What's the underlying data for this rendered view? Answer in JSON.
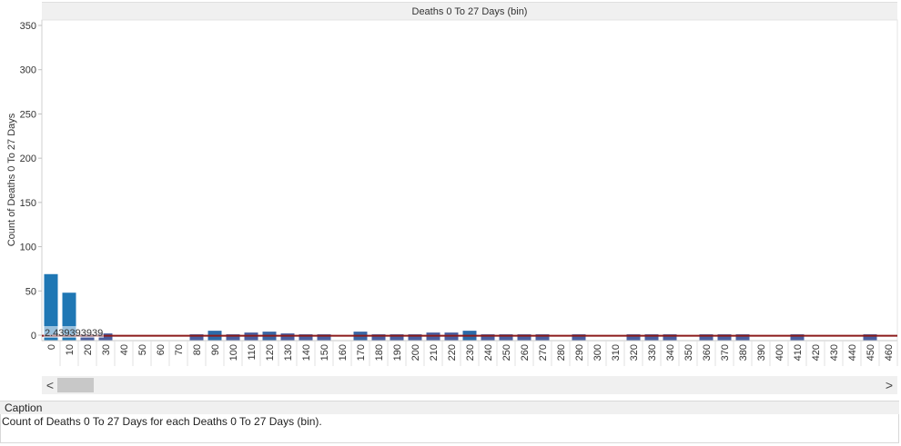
{
  "chart_data": {
    "type": "bar",
    "title": "Deaths 0 To 27 Days (bin)",
    "ylabel": "Count of Deaths 0 To 27 Days",
    "ylim": [
      0,
      350
    ],
    "yticks": [
      0,
      50,
      100,
      150,
      200,
      250,
      300,
      350
    ],
    "categories": [
      "0",
      "10",
      "20",
      "30",
      "40",
      "50",
      "60",
      "70",
      "80",
      "90",
      "100",
      "110",
      "120",
      "130",
      "140",
      "150",
      "160",
      "170",
      "180",
      "190",
      "200",
      "210",
      "220",
      "230",
      "240",
      "250",
      "260",
      "270",
      "280",
      "290",
      "300",
      "310",
      "320",
      "330",
      "340",
      "350",
      "360",
      "370",
      "380",
      "390",
      "400",
      "410",
      "420",
      "430",
      "440",
      "450",
      "460"
    ],
    "values": [
      69,
      48,
      1,
      2,
      0,
      0,
      0,
      0,
      1,
      5,
      1,
      3,
      4,
      2,
      1,
      1,
      0,
      4,
      1,
      1,
      1,
      3,
      3,
      5,
      1,
      1,
      1,
      1,
      0,
      1,
      0,
      0,
      1,
      1,
      1,
      0,
      1,
      1,
      1,
      0,
      0,
      1,
      0,
      0,
      0,
      1,
      0
    ],
    "bar_colors": [
      "#1f77b4",
      "#1f77b4",
      "#4a5fa0",
      "#4a5fa0",
      "#4a5fa0",
      "#4a5fa0",
      "#4a5fa0",
      "#4a5fa0",
      "#4a5fa0",
      "#2c6aa8",
      "#4a5fa0",
      "#4a5fa0",
      "#3a66a4",
      "#4a5fa0",
      "#4a5fa0",
      "#4a5fa0",
      "#4a5fa0",
      "#3a66a4",
      "#4a5fa0",
      "#4a5fa0",
      "#4a5fa0",
      "#4a5fa0",
      "#4a5fa0",
      "#2c6aa8",
      "#4a5fa0",
      "#4a5fa0",
      "#4a5fa0",
      "#4a5fa0",
      "#4a5fa0",
      "#4a5fa0",
      "#4a5fa0",
      "#4a5fa0",
      "#4a5fa0",
      "#4a5fa0",
      "#4a5fa0",
      "#4a5fa0",
      "#4a5fa0",
      "#4a5fa0",
      "#4a5fa0",
      "#4a5fa0",
      "#4a5fa0",
      "#4a5fa0",
      "#4a5fa0",
      "#4a5fa0",
      "#4a5fa0",
      "#4a5fa0",
      "#4a5fa0"
    ],
    "reference_line": {
      "value": 2.439393939,
      "label": "2.439393939",
      "color": "#8b1a1a"
    },
    "grid": false
  },
  "caption": {
    "header": "Caption",
    "text": "Count of Deaths 0 To 27 Days for each Deaths 0 To 27 Days (bin)."
  },
  "scrollbar": {
    "left_glyph": "<",
    "right_glyph": ">"
  }
}
